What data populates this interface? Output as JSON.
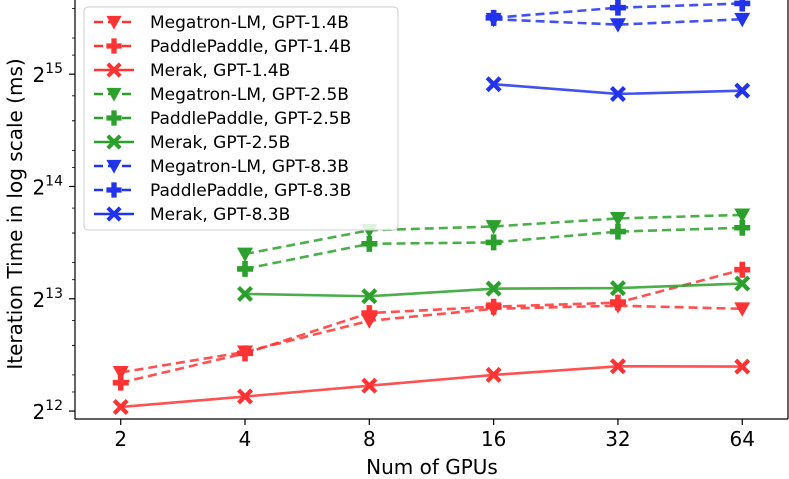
{
  "chart_data": {
    "type": "line",
    "title": "",
    "xlabel": "Num of GPUs",
    "ylabel": "Iteration Time in log scale (ms)",
    "x_scale": "log2",
    "y_scale": "log2",
    "x": [
      2,
      4,
      8,
      16,
      32,
      64
    ],
    "x_tick_labels": [
      "2",
      "4",
      "8",
      "16",
      "32",
      "64"
    ],
    "y_ticks": [
      {
        "value": 4096,
        "base": "2",
        "exp": "12"
      },
      {
        "value": 8192,
        "base": "2",
        "exp": "13"
      },
      {
        "value": 16384,
        "base": "2",
        "exp": "14"
      },
      {
        "value": 32768,
        "base": "2",
        "exp": "15"
      }
    ],
    "xlim": [
      1.55,
      82.6
    ],
    "ylim": [
      3900,
      51800
    ],
    "legend_position": "top-left",
    "series": [
      {
        "name": "Megatron-LM, GPT-1.4B",
        "color": "#ff3333",
        "dash": true,
        "marker": "triangle-down",
        "x": [
          2,
          4,
          8,
          16,
          32,
          64
        ],
        "values": [
          5200,
          5900,
          7150,
          7700,
          7850,
          7700
        ]
      },
      {
        "name": "PaddlePaddle, GPT-1.4B",
        "color": "#ff3333",
        "dash": true,
        "marker": "plus",
        "x": [
          2,
          4,
          8,
          16,
          32,
          64
        ],
        "values": [
          4880,
          5850,
          7500,
          7800,
          8000,
          9800
        ]
      },
      {
        "name": "Merak, GPT-1.4B",
        "color": "#ff3333",
        "dash": false,
        "marker": "x",
        "x": [
          2,
          4,
          8,
          16,
          32,
          64
        ],
        "values": [
          4200,
          4480,
          4790,
          5120,
          5400,
          5390
        ]
      },
      {
        "name": "Megatron-LM, GPT-2.5B",
        "color": "#2ca02c",
        "dash": true,
        "marker": "triangle-down",
        "x": [
          4,
          8,
          16,
          32,
          64
        ],
        "values": [
          10800,
          12500,
          12800,
          13450,
          13750
        ]
      },
      {
        "name": "PaddlePaddle, GPT-2.5B",
        "color": "#2ca02c",
        "dash": true,
        "marker": "plus",
        "x": [
          4,
          8,
          16,
          32,
          64
        ],
        "values": [
          9850,
          11500,
          11600,
          12400,
          12700
        ]
      },
      {
        "name": "Merak, GPT-2.5B",
        "color": "#2ca02c",
        "dash": false,
        "marker": "x",
        "x": [
          4,
          8,
          16,
          32,
          64
        ],
        "values": [
          8440,
          8320,
          8720,
          8750,
          9000
        ]
      },
      {
        "name": "Megatron-LM, GPT-8.3B",
        "color": "#2233ee",
        "dash": true,
        "marker": "triangle-down",
        "x": [
          16,
          32,
          64
        ],
        "values": [
          46000,
          44500,
          46000
        ]
      },
      {
        "name": "PaddlePaddle, GPT-8.3B",
        "color": "#2233ee",
        "dash": true,
        "marker": "plus",
        "x": [
          16,
          32,
          64
        ],
        "values": [
          46400,
          49400,
          50700
        ]
      },
      {
        "name": "Merak, GPT-8.3B",
        "color": "#2233ee",
        "dash": false,
        "marker": "x",
        "x": [
          16,
          32,
          64
        ],
        "values": [
          30800,
          29000,
          29600
        ]
      }
    ]
  }
}
